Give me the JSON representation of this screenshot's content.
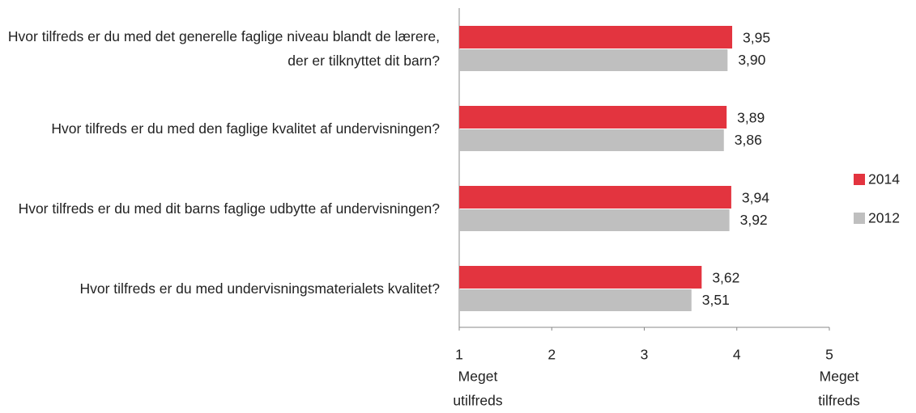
{
  "chart_data": {
    "type": "barh",
    "categories": [
      "Hvor tilfreds er du med det generelle faglige niveau blandt de lærere, der er tilknyttet dit barn?",
      "Hvor tilfreds er du med den faglige kvalitet af undervisningen?",
      "Hvor tilfreds er du med dit barns faglige udbytte af undervisningen?",
      "Hvor tilfreds er du med undervisningsmaterialets kvalitet?"
    ],
    "series": [
      {
        "name": "2014",
        "color": "#e3343f",
        "values": [
          3.95,
          3.89,
          3.94,
          3.62
        ],
        "value_labels": [
          "3,95",
          "3,89",
          "3,94",
          "3,62"
        ]
      },
      {
        "name": "2012",
        "color": "#bfbfbf",
        "values": [
          3.9,
          3.86,
          3.92,
          3.51
        ],
        "value_labels": [
          "3,90",
          "3,86",
          "3,92",
          "3,51"
        ]
      }
    ],
    "xlim": [
      1,
      5
    ],
    "xticks": [
      1,
      2,
      3,
      4,
      5
    ],
    "annotations": [
      [
        "Meget",
        "utilfreds"
      ],
      [
        "Meget",
        "tilfreds"
      ]
    ],
    "legend": "right"
  }
}
